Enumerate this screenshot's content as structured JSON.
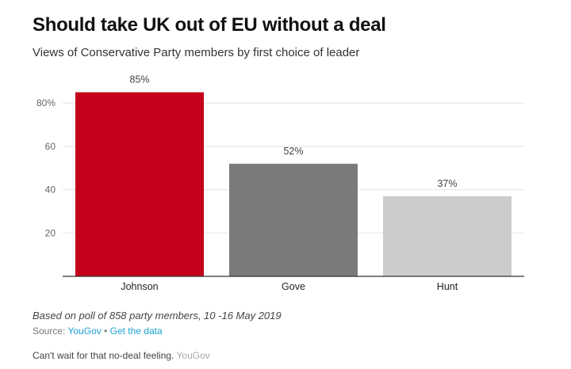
{
  "header": {
    "title": "Should take UK out of EU without a deal",
    "subtitle": "Views of Conservative Party members by first choice of leader"
  },
  "chart_data": {
    "type": "bar",
    "categories": [
      "Johnson",
      "Gove",
      "Hunt"
    ],
    "values": [
      85,
      52,
      37
    ],
    "data_labels": [
      "85%",
      "52%",
      "37%"
    ],
    "colors": [
      "#c4001b",
      "#7a7a7a",
      "#cccccc"
    ],
    "y_ticks": [
      20,
      40,
      60,
      80
    ],
    "y_tick_labels": [
      "20",
      "40",
      "60",
      "80%"
    ],
    "ylim": [
      0,
      100
    ],
    "grid": true
  },
  "footer": {
    "note": "Based on poll of 858 party members, 10 -16 May 2019",
    "source_prefix": "Source: ",
    "source_name": "YouGov",
    "separator": " • ",
    "data_link": "Get the data",
    "caption": "Can't wait for that no-deal feeling.",
    "credit": "YouGov"
  }
}
